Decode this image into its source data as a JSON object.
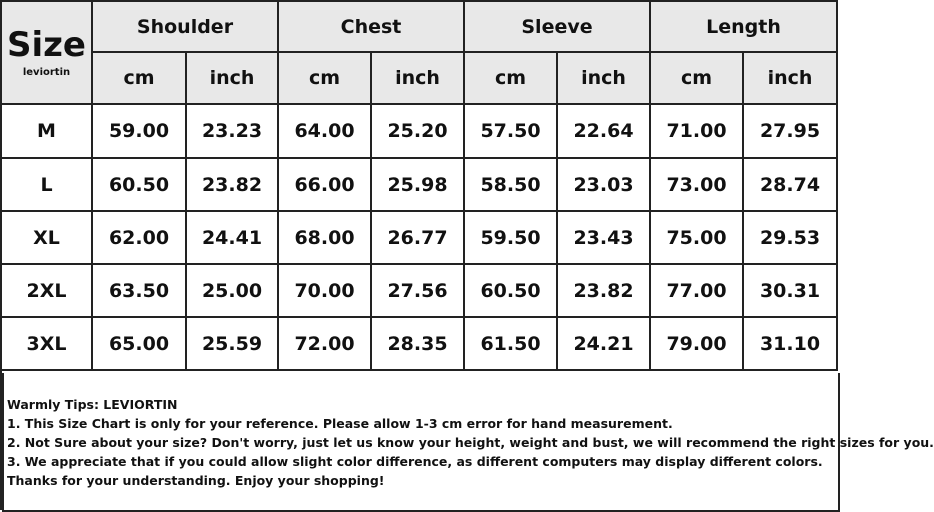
{
  "header": {
    "size": "Size",
    "brand": "leviortin",
    "groups": [
      "Shoulder",
      "Chest",
      "Sleeve",
      "Length"
    ],
    "units": [
      "cm",
      "inch",
      "cm",
      "inch",
      "cm",
      "inch",
      "cm",
      "inch"
    ]
  },
  "table": {
    "rows": [
      [
        "M",
        "59.00",
        "23.23",
        "64.00",
        "25.20",
        "57.50",
        "22.64",
        "71.00",
        "27.95"
      ],
      [
        "L",
        "60.50",
        "23.82",
        "66.00",
        "25.98",
        "58.50",
        "23.03",
        "73.00",
        "28.74"
      ],
      [
        "XL",
        "62.00",
        "24.41",
        "68.00",
        "26.77",
        "59.50",
        "23.43",
        "75.00",
        "29.53"
      ],
      [
        "2XL",
        "63.50",
        "25.00",
        "70.00",
        "27.56",
        "60.50",
        "23.82",
        "77.00",
        "30.31"
      ],
      [
        "3XL",
        "65.00",
        "25.59",
        "72.00",
        "28.35",
        "61.50",
        "24.21",
        "79.00",
        "31.10"
      ]
    ]
  },
  "notes": {
    "title": "Warmly Tips: LEVIORTIN",
    "lines": [
      "1. This Size Chart is only for your reference. Please allow 1-3 cm error for hand measurement.",
      "2. Not Sure about your size? Don't worry, just let us know your height, weight and bust, we will recommend the right sizes for you.",
      "3. We appreciate that if you could allow slight color difference, as different computers may display different colors.",
      "Thanks for your understanding. Enjoy your shopping!"
    ]
  }
}
